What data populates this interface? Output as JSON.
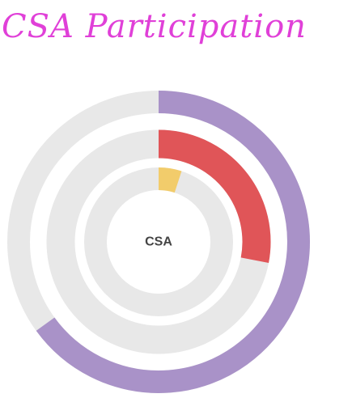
{
  "title": "CSA Participation",
  "chart_data": {
    "type": "pie",
    "subtype": "radial-progress-rings",
    "center_label": "CSA",
    "track_color": "#e8e8e8",
    "series": [
      {
        "value": 0.65,
        "color": "#a992c8"
      },
      {
        "value": 0.28,
        "color": "#e05558"
      },
      {
        "value": 0.05,
        "color": "#f2cc6b"
      }
    ]
  }
}
